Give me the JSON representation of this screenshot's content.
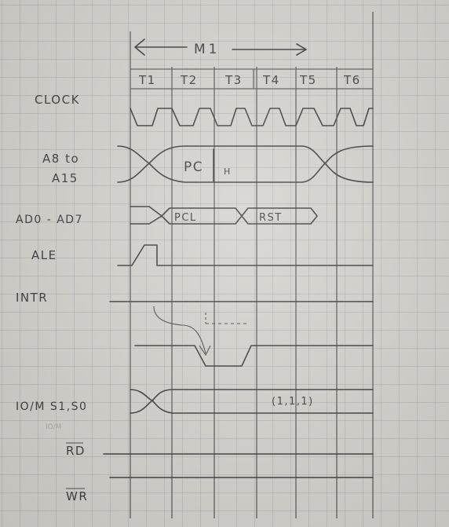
{
  "header": {
    "cycle_label": "M1"
  },
  "states": [
    "T1",
    "T2",
    "T3",
    "T4",
    "T5",
    "T6"
  ],
  "signals": {
    "clock": "CLOCK",
    "addr_high_line1": "A8 to",
    "addr_high_line2": "A15",
    "addr_low": "AD0 - AD7",
    "ale": "ALE",
    "intr": "INTR",
    "io_status": "IO/M  S1,S0",
    "rd": "RD",
    "wr": "WR"
  },
  "bus_values": {
    "pch": "PC",
    "pch_suffix": "H",
    "pcl": "PCL",
    "rst": "RST",
    "status_value": "(1,1,1)"
  },
  "faint_text": "IO/M"
}
